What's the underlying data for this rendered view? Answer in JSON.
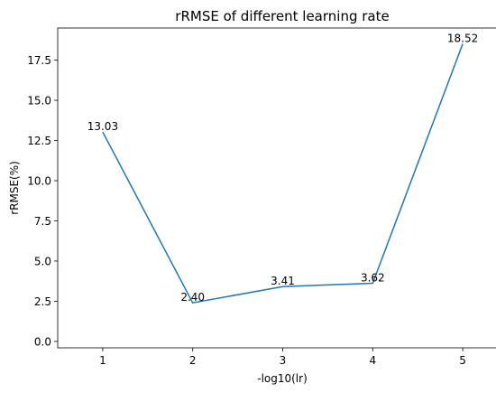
{
  "chart_data": {
    "type": "line",
    "title": "rRMSE of different learning rate",
    "xlabel": "-log10(lr)",
    "ylabel": "rRMSE(%)",
    "x": [
      1,
      2,
      3,
      4,
      5
    ],
    "values": [
      13.03,
      2.4,
      3.41,
      3.62,
      18.52
    ],
    "data_labels": [
      "13.03",
      "2.40",
      "3.41",
      "3.62",
      "18.52"
    ],
    "xticks": [
      1,
      2,
      3,
      4,
      5
    ],
    "xtick_labels": [
      "1",
      "2",
      "3",
      "4",
      "5"
    ],
    "yticks": [
      0,
      2.5,
      5,
      7.5,
      10,
      12.5,
      15,
      17.5
    ],
    "ytick_labels": [
      "0.0",
      "2.5",
      "5.0",
      "7.5",
      "10.0",
      "12.5",
      "15.0",
      "17.5"
    ],
    "xlim": [
      0.5,
      5.5
    ],
    "ylim": [
      -0.4,
      19.5
    ],
    "grid": false,
    "line_color": "#1f77b4"
  }
}
